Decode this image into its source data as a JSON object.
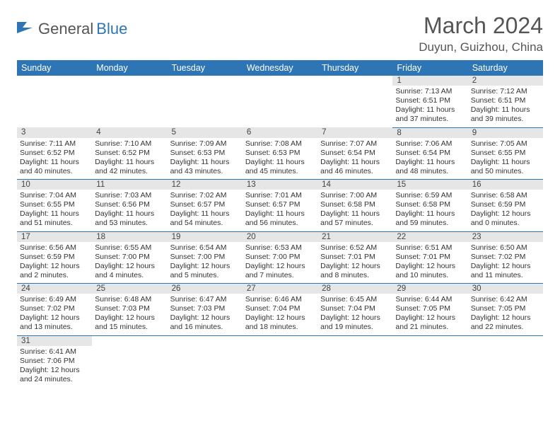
{
  "logo": {
    "text1": "General",
    "text2": "Blue"
  },
  "title": "March 2024",
  "location": "Duyun, Guizhou, China",
  "colors": {
    "header_bg": "#2e75b6",
    "header_fg": "#ffffff",
    "daynum_bg": "#e6e6e6",
    "cell_border": "#2e75b6",
    "text": "#333333"
  },
  "fonts": {
    "title_size": 32,
    "location_size": 17,
    "header_size": 12.5,
    "cell_size": 10.5
  },
  "day_names": [
    "Sunday",
    "Monday",
    "Tuesday",
    "Wednesday",
    "Thursday",
    "Friday",
    "Saturday"
  ],
  "weeks": [
    {
      "nums": [
        "",
        "",
        "",
        "",
        "",
        "1",
        "2"
      ],
      "cells": [
        null,
        null,
        null,
        null,
        null,
        {
          "sr": "Sunrise: 7:13 AM",
          "ss": "Sunset: 6:51 PM",
          "d1": "Daylight: 11 hours",
          "d2": "and 37 minutes."
        },
        {
          "sr": "Sunrise: 7:12 AM",
          "ss": "Sunset: 6:51 PM",
          "d1": "Daylight: 11 hours",
          "d2": "and 39 minutes."
        }
      ]
    },
    {
      "nums": [
        "3",
        "4",
        "5",
        "6",
        "7",
        "8",
        "9"
      ],
      "cells": [
        {
          "sr": "Sunrise: 7:11 AM",
          "ss": "Sunset: 6:52 PM",
          "d1": "Daylight: 11 hours",
          "d2": "and 40 minutes."
        },
        {
          "sr": "Sunrise: 7:10 AM",
          "ss": "Sunset: 6:52 PM",
          "d1": "Daylight: 11 hours",
          "d2": "and 42 minutes."
        },
        {
          "sr": "Sunrise: 7:09 AM",
          "ss": "Sunset: 6:53 PM",
          "d1": "Daylight: 11 hours",
          "d2": "and 43 minutes."
        },
        {
          "sr": "Sunrise: 7:08 AM",
          "ss": "Sunset: 6:53 PM",
          "d1": "Daylight: 11 hours",
          "d2": "and 45 minutes."
        },
        {
          "sr": "Sunrise: 7:07 AM",
          "ss": "Sunset: 6:54 PM",
          "d1": "Daylight: 11 hours",
          "d2": "and 46 minutes."
        },
        {
          "sr": "Sunrise: 7:06 AM",
          "ss": "Sunset: 6:54 PM",
          "d1": "Daylight: 11 hours",
          "d2": "and 48 minutes."
        },
        {
          "sr": "Sunrise: 7:05 AM",
          "ss": "Sunset: 6:55 PM",
          "d1": "Daylight: 11 hours",
          "d2": "and 50 minutes."
        }
      ]
    },
    {
      "nums": [
        "10",
        "11",
        "12",
        "13",
        "14",
        "15",
        "16"
      ],
      "cells": [
        {
          "sr": "Sunrise: 7:04 AM",
          "ss": "Sunset: 6:55 PM",
          "d1": "Daylight: 11 hours",
          "d2": "and 51 minutes."
        },
        {
          "sr": "Sunrise: 7:03 AM",
          "ss": "Sunset: 6:56 PM",
          "d1": "Daylight: 11 hours",
          "d2": "and 53 minutes."
        },
        {
          "sr": "Sunrise: 7:02 AM",
          "ss": "Sunset: 6:57 PM",
          "d1": "Daylight: 11 hours",
          "d2": "and 54 minutes."
        },
        {
          "sr": "Sunrise: 7:01 AM",
          "ss": "Sunset: 6:57 PM",
          "d1": "Daylight: 11 hours",
          "d2": "and 56 minutes."
        },
        {
          "sr": "Sunrise: 7:00 AM",
          "ss": "Sunset: 6:58 PM",
          "d1": "Daylight: 11 hours",
          "d2": "and 57 minutes."
        },
        {
          "sr": "Sunrise: 6:59 AM",
          "ss": "Sunset: 6:58 PM",
          "d1": "Daylight: 11 hours",
          "d2": "and 59 minutes."
        },
        {
          "sr": "Sunrise: 6:58 AM",
          "ss": "Sunset: 6:59 PM",
          "d1": "Daylight: 12 hours",
          "d2": "and 0 minutes."
        }
      ]
    },
    {
      "nums": [
        "17",
        "18",
        "19",
        "20",
        "21",
        "22",
        "23"
      ],
      "cells": [
        {
          "sr": "Sunrise: 6:56 AM",
          "ss": "Sunset: 6:59 PM",
          "d1": "Daylight: 12 hours",
          "d2": "and 2 minutes."
        },
        {
          "sr": "Sunrise: 6:55 AM",
          "ss": "Sunset: 7:00 PM",
          "d1": "Daylight: 12 hours",
          "d2": "and 4 minutes."
        },
        {
          "sr": "Sunrise: 6:54 AM",
          "ss": "Sunset: 7:00 PM",
          "d1": "Daylight: 12 hours",
          "d2": "and 5 minutes."
        },
        {
          "sr": "Sunrise: 6:53 AM",
          "ss": "Sunset: 7:00 PM",
          "d1": "Daylight: 12 hours",
          "d2": "and 7 minutes."
        },
        {
          "sr": "Sunrise: 6:52 AM",
          "ss": "Sunset: 7:01 PM",
          "d1": "Daylight: 12 hours",
          "d2": "and 8 minutes."
        },
        {
          "sr": "Sunrise: 6:51 AM",
          "ss": "Sunset: 7:01 PM",
          "d1": "Daylight: 12 hours",
          "d2": "and 10 minutes."
        },
        {
          "sr": "Sunrise: 6:50 AM",
          "ss": "Sunset: 7:02 PM",
          "d1": "Daylight: 12 hours",
          "d2": "and 11 minutes."
        }
      ]
    },
    {
      "nums": [
        "24",
        "25",
        "26",
        "27",
        "28",
        "29",
        "30"
      ],
      "cells": [
        {
          "sr": "Sunrise: 6:49 AM",
          "ss": "Sunset: 7:02 PM",
          "d1": "Daylight: 12 hours",
          "d2": "and 13 minutes."
        },
        {
          "sr": "Sunrise: 6:48 AM",
          "ss": "Sunset: 7:03 PM",
          "d1": "Daylight: 12 hours",
          "d2": "and 15 minutes."
        },
        {
          "sr": "Sunrise: 6:47 AM",
          "ss": "Sunset: 7:03 PM",
          "d1": "Daylight: 12 hours",
          "d2": "and 16 minutes."
        },
        {
          "sr": "Sunrise: 6:46 AM",
          "ss": "Sunset: 7:04 PM",
          "d1": "Daylight: 12 hours",
          "d2": "and 18 minutes."
        },
        {
          "sr": "Sunrise: 6:45 AM",
          "ss": "Sunset: 7:04 PM",
          "d1": "Daylight: 12 hours",
          "d2": "and 19 minutes."
        },
        {
          "sr": "Sunrise: 6:44 AM",
          "ss": "Sunset: 7:05 PM",
          "d1": "Daylight: 12 hours",
          "d2": "and 21 minutes."
        },
        {
          "sr": "Sunrise: 6:42 AM",
          "ss": "Sunset: 7:05 PM",
          "d1": "Daylight: 12 hours",
          "d2": "and 22 minutes."
        }
      ]
    },
    {
      "nums": [
        "31",
        "",
        "",
        "",
        "",
        "",
        ""
      ],
      "cells": [
        {
          "sr": "Sunrise: 6:41 AM",
          "ss": "Sunset: 7:06 PM",
          "d1": "Daylight: 12 hours",
          "d2": "and 24 minutes."
        },
        null,
        null,
        null,
        null,
        null,
        null
      ]
    }
  ]
}
